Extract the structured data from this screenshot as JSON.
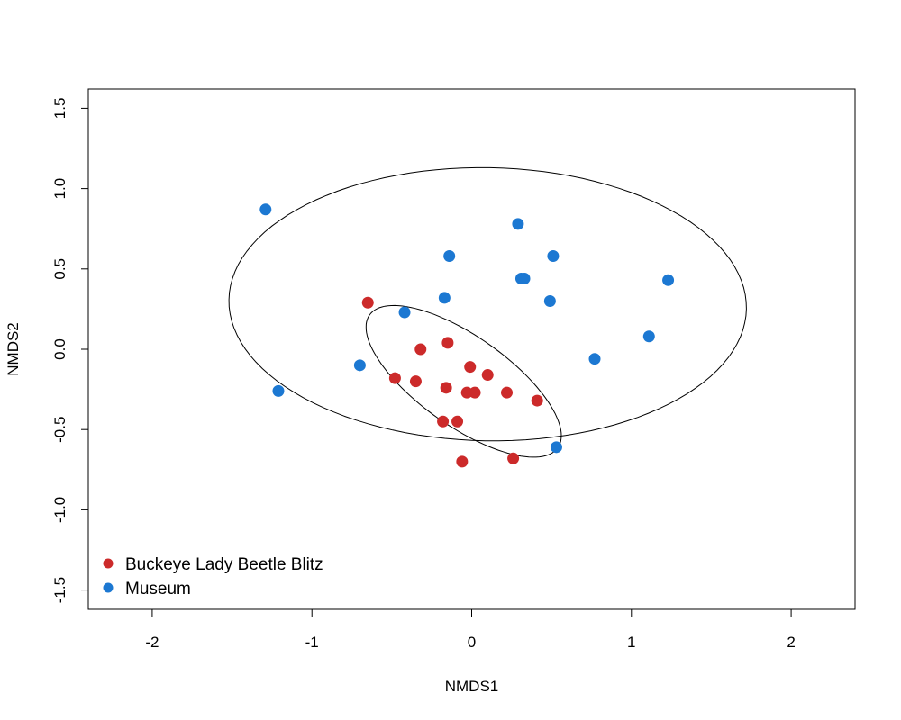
{
  "chart_data": {
    "type": "scatter",
    "title": "",
    "xlabel": "NMDS1",
    "ylabel": "NMDS2",
    "xlim": [
      -2.4,
      2.4
    ],
    "ylim": [
      -1.62,
      1.62
    ],
    "x_ticks": [
      -2,
      -1,
      0,
      1,
      2
    ],
    "x_tick_labels": [
      "-2",
      "-1",
      "0",
      "1",
      "2"
    ],
    "y_ticks": [
      -1.5,
      -1.0,
      -0.5,
      0.0,
      0.5,
      1.0,
      1.5
    ],
    "y_tick_labels": [
      "-1.5",
      "-1.0",
      "-0.5",
      "0.0",
      "0.5",
      "1.0",
      "1.5"
    ],
    "grid": false,
    "legend_position": "bottom-left",
    "series": [
      {
        "name": "Buckeye Lady Beetle Blitz",
        "color": "#cc2a2a",
        "points": [
          [
            -0.65,
            0.29
          ],
          [
            -0.32,
            0.0
          ],
          [
            -0.15,
            0.04
          ],
          [
            -0.48,
            -0.18
          ],
          [
            -0.35,
            -0.2
          ],
          [
            -0.16,
            -0.24
          ],
          [
            -0.01,
            -0.11
          ],
          [
            0.1,
            -0.16
          ],
          [
            -0.03,
            -0.27
          ],
          [
            0.02,
            -0.27
          ],
          [
            0.22,
            -0.27
          ],
          [
            0.41,
            -0.32
          ],
          [
            -0.18,
            -0.45
          ],
          [
            -0.09,
            -0.45
          ],
          [
            -0.06,
            -0.7
          ],
          [
            0.26,
            -0.68
          ]
        ]
      },
      {
        "name": "Museum",
        "color": "#1c78d2",
        "points": [
          [
            -1.29,
            0.87
          ],
          [
            -1.21,
            -0.26
          ],
          [
            -0.7,
            -0.1
          ],
          [
            -0.42,
            0.23
          ],
          [
            -0.17,
            0.32
          ],
          [
            -0.14,
            0.58
          ],
          [
            0.29,
            0.78
          ],
          [
            0.31,
            0.44
          ],
          [
            0.33,
            0.44
          ],
          [
            0.51,
            0.58
          ],
          [
            0.49,
            0.3
          ],
          [
            1.23,
            0.43
          ],
          [
            1.11,
            0.08
          ],
          [
            0.77,
            -0.06
          ],
          [
            0.53,
            -0.61
          ]
        ]
      }
    ],
    "ellipses": [
      {
        "series": "Museum",
        "center": [
          0.1,
          0.28
        ],
        "semi_axes": [
          1.62,
          0.85
        ],
        "angle_deg": -1
      },
      {
        "series": "Buckeye Lady Beetle Blitz",
        "center": [
          -0.05,
          -0.2
        ],
        "semi_axes": [
          0.72,
          0.28
        ],
        "angle_deg": -35
      }
    ]
  }
}
